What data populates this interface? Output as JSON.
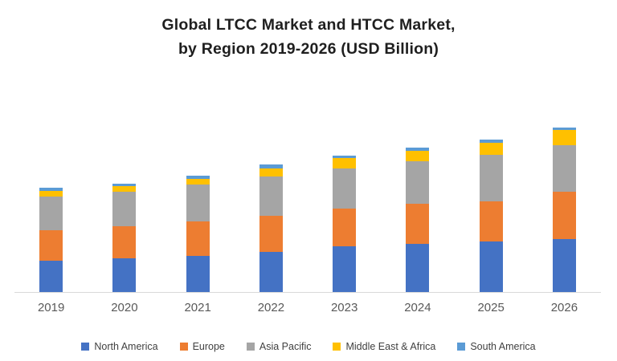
{
  "title": {
    "line1": "Global LTCC Market and HTCC Market,",
    "line2": "by Region 2019-2026 (USD Billion)"
  },
  "chart_data": {
    "type": "bar",
    "stacked": true,
    "title": "Global LTCC Market and HTCC Market, by Region 2019-2026 (USD Billion)",
    "categories": [
      "2019",
      "2020",
      "2021",
      "2022",
      "2023",
      "2024",
      "2025",
      "2026"
    ],
    "series": [
      {
        "name": "North America",
        "color": "#4472C4",
        "values": [
          39,
          42,
          45,
          50,
          57,
          60,
          63,
          66
        ]
      },
      {
        "name": "Europe",
        "color": "#ED7D31",
        "values": [
          38,
          40,
          43,
          45,
          47,
          50,
          50,
          59
        ]
      },
      {
        "name": "Asia Pacific",
        "color": "#A5A5A5",
        "values": [
          42,
          43,
          46,
          49,
          50,
          53,
          58,
          58
        ]
      },
      {
        "name": "Middle East & Africa",
        "color": "#FFC000",
        "values": [
          7,
          7,
          7,
          10,
          13,
          13,
          15,
          19
        ]
      },
      {
        "name": "South America",
        "color": "#5B9BD5",
        "values": [
          4,
          3,
          4,
          5,
          3,
          4,
          4,
          3
        ]
      }
    ],
    "stack_totals": [
      130,
      135,
      145,
      159,
      170,
      180,
      190,
      205
    ],
    "xlabel": "",
    "ylabel": "",
    "ylim": [
      0,
      220
    ],
    "value_axis_visible": false,
    "grid": false,
    "legend_position": "bottom"
  },
  "colors": {
    "background": "#FFFFFF",
    "title_text": "#1F1F1F",
    "axis_line": "#D9D9D9",
    "tick_label": "#595959",
    "legend_label": "#404040"
  }
}
